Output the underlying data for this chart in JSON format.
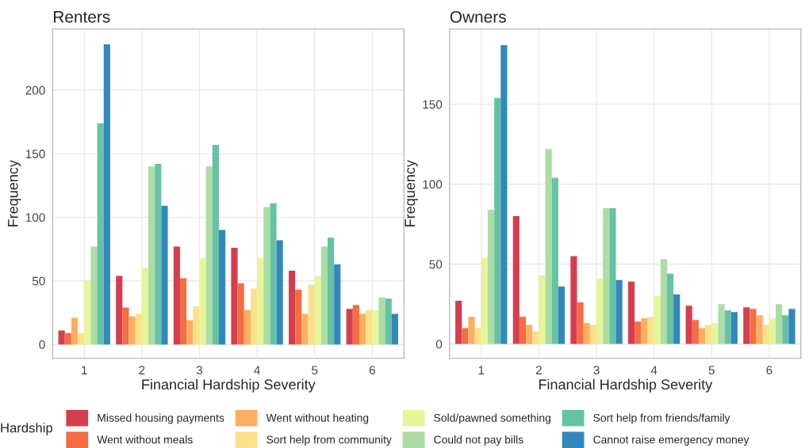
{
  "chart_data": [
    {
      "type": "bar",
      "title": "Renters",
      "xlabel": "Financial Hardship Severity",
      "ylabel": "Frequency",
      "legend_title": "Hardship",
      "legend": "bottom",
      "grid": true,
      "categories": [
        "1",
        "2",
        "3",
        "4",
        "5",
        "6"
      ],
      "ylim": [
        -11,
        248
      ],
      "yticks": [
        0,
        50,
        100,
        150,
        200
      ],
      "series": [
        {
          "name": "Missed housing payments",
          "color": "#d53e4f",
          "values": [
            11,
            54,
            77,
            76,
            58,
            28
          ]
        },
        {
          "name": "Went without meals",
          "color": "#f46d43",
          "values": [
            9,
            29,
            52,
            48,
            43,
            31
          ]
        },
        {
          "name": "Went without heating",
          "color": "#fdae61",
          "values": [
            21,
            22,
            19,
            27,
            24,
            24
          ]
        },
        {
          "name": "Sort help from community",
          "color": "#fee08b",
          "values": [
            9,
            24,
            30,
            44,
            47,
            27
          ]
        },
        {
          "name": "Sold/pawned something",
          "color": "#e6f598",
          "values": [
            50,
            60,
            68,
            68,
            54,
            27
          ]
        },
        {
          "name": "Could not pay bills",
          "color": "#abdda4",
          "values": [
            77,
            140,
            140,
            108,
            77,
            37
          ]
        },
        {
          "name": "Sort help from friends/family",
          "color": "#66c2a5",
          "values": [
            174,
            142,
            157,
            111,
            84,
            36
          ]
        },
        {
          "name": "Cannot raise emergency money",
          "color": "#3288bd",
          "values": [
            236,
            109,
            90,
            82,
            63,
            24
          ]
        }
      ]
    },
    {
      "type": "bar",
      "title": "Owners",
      "xlabel": "Financial Hardship Severity",
      "ylabel": "Frequency",
      "grid": true,
      "categories": [
        "1",
        "2",
        "3",
        "4",
        "5",
        "6"
      ],
      "ylim": [
        -9,
        197
      ],
      "yticks": [
        0,
        50,
        100,
        150
      ],
      "series": [
        {
          "color": "#d53e4f",
          "values": [
            27,
            80,
            55,
            39,
            24,
            23
          ]
        },
        {
          "color": "#f46d43",
          "values": [
            10,
            17,
            26,
            14,
            15,
            22
          ]
        },
        {
          "color": "#fdae61",
          "values": [
            17,
            12,
            13,
            16,
            10,
            18
          ]
        },
        {
          "color": "#fee08b",
          "values": [
            10,
            8,
            12,
            17,
            12,
            12
          ]
        },
        {
          "color": "#e6f598",
          "values": [
            54,
            43,
            41,
            30,
            13,
            16
          ]
        },
        {
          "color": "#abdda4",
          "values": [
            84,
            122,
            85,
            53,
            25,
            25
          ]
        },
        {
          "color": "#66c2a5",
          "values": [
            154,
            104,
            85,
            44,
            21,
            18
          ]
        },
        {
          "color": "#3288bd",
          "values": [
            187,
            36,
            40,
            31,
            20,
            22
          ]
        }
      ]
    }
  ]
}
